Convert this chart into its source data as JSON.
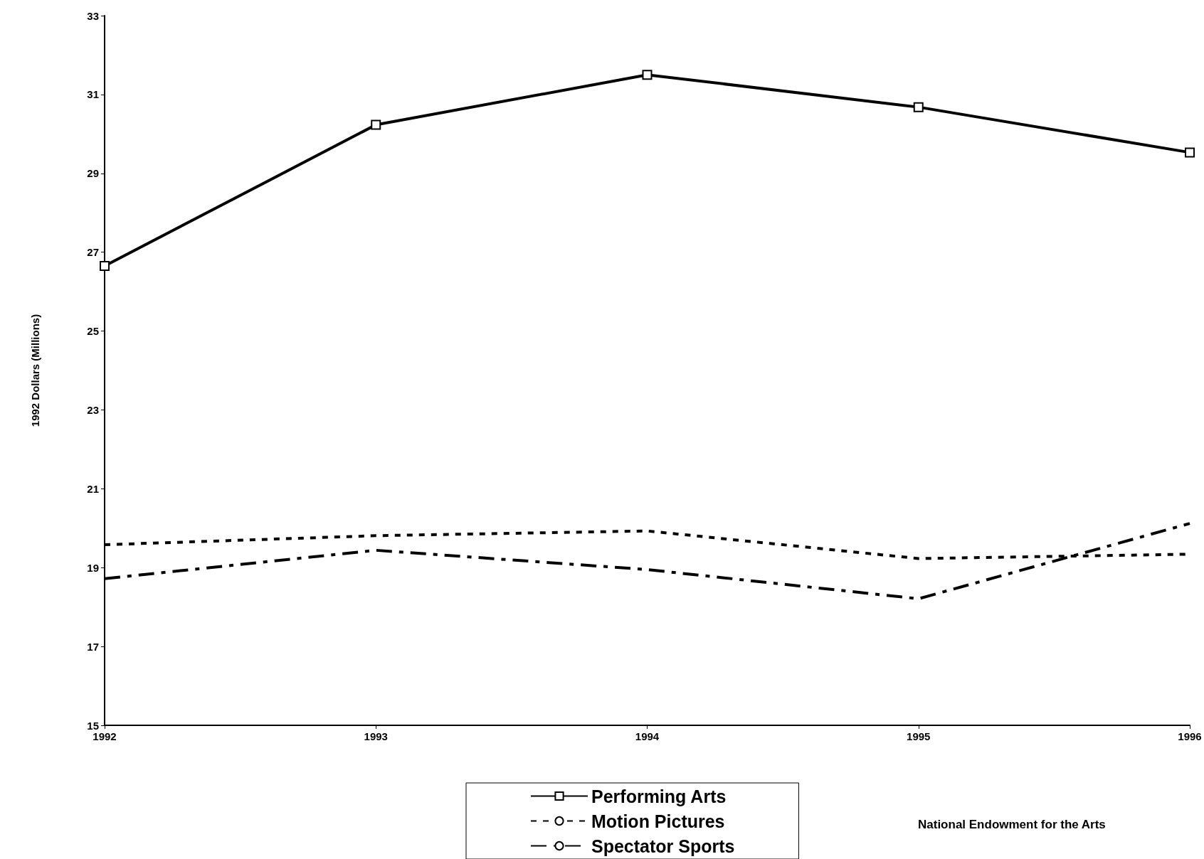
{
  "chart_data": {
    "type": "line",
    "ylabel": "1992 Dollars (Millions)",
    "x": [
      1992,
      1993,
      1994,
      1995,
      1996
    ],
    "xlim": [
      1992,
      1996
    ],
    "xticks": [
      1992,
      1993,
      1994,
      1995,
      1996
    ],
    "ylim": [
      15,
      33
    ],
    "yticks": [
      15,
      17,
      19,
      21,
      23,
      25,
      27,
      29,
      31,
      33
    ],
    "grid": false,
    "legend": "bottom",
    "series": [
      {
        "name": "Performing Arts",
        "color": "#000000",
        "values": [
          26.65,
          30.23,
          31.5,
          30.68,
          29.53
        ],
        "marker": "square",
        "line_style": "solid"
      },
      {
        "name": "Motion Pictures",
        "color": "#000000",
        "values": [
          19.58,
          19.81,
          19.93,
          19.23,
          19.34
        ],
        "marker": "none",
        "line_style": "dotted"
      },
      {
        "name": "Spectator Sports",
        "color": "#000000",
        "values": [
          18.72,
          19.44,
          18.95,
          18.21,
          20.12
        ],
        "marker": "none",
        "line_style": "dashed"
      }
    ],
    "annotations": [
      "National Endowment for the Arts"
    ]
  }
}
